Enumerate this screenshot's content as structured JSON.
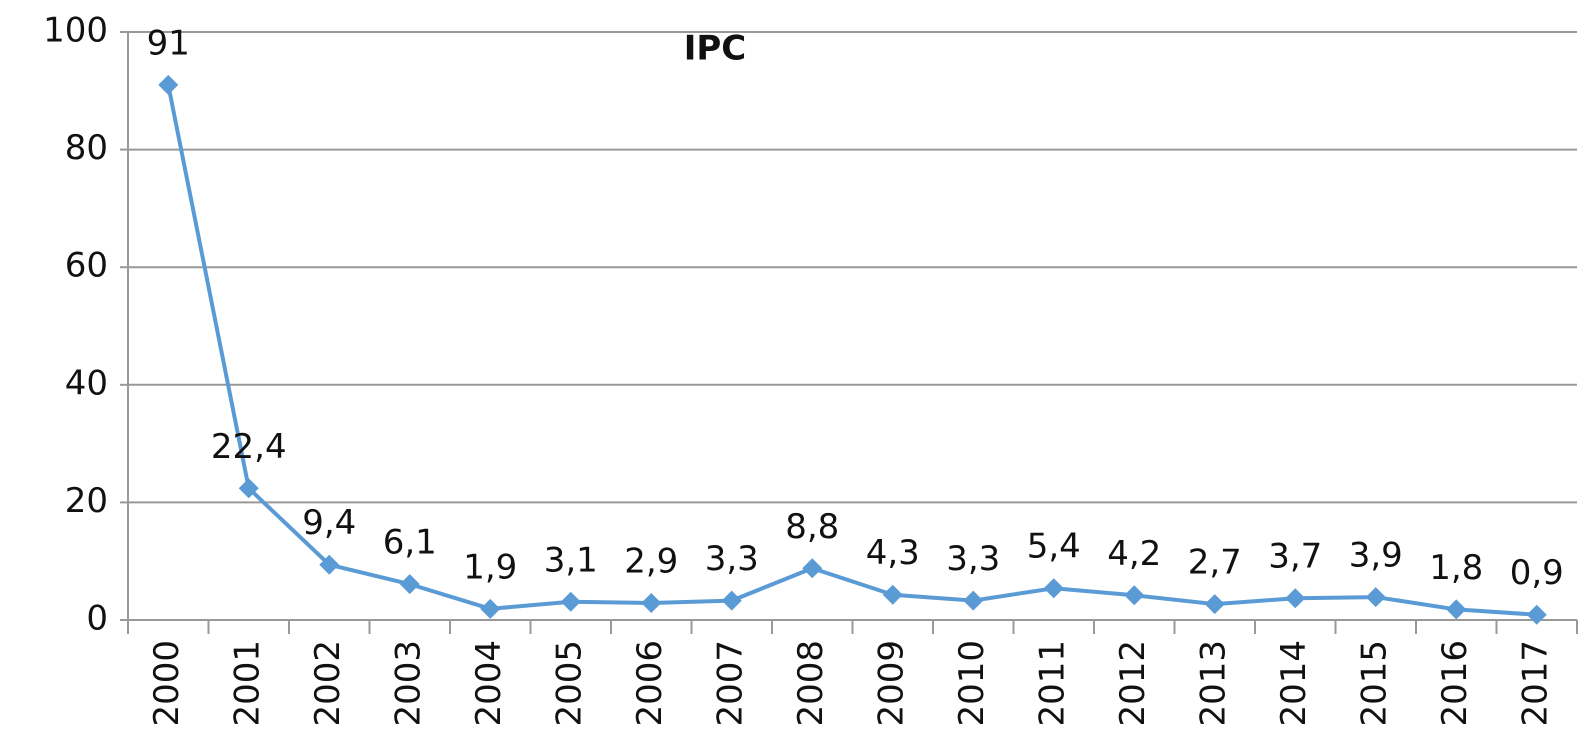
{
  "chart_data": {
    "type": "line",
    "title": "IPC",
    "categories": [
      "2000",
      "2001",
      "2002",
      "2003",
      "2004",
      "2005",
      "2006",
      "2007",
      "2008",
      "2009",
      "2010",
      "2011",
      "2012",
      "2013",
      "2014",
      "2015",
      "2016",
      "2017"
    ],
    "values": [
      91,
      22.4,
      9.4,
      6.1,
      1.9,
      3.1,
      2.9,
      3.3,
      8.8,
      4.3,
      3.3,
      5.4,
      4.2,
      2.7,
      3.7,
      3.9,
      1.8,
      0.9
    ],
    "value_labels": [
      "91",
      "22,4",
      "9,4",
      "6,1",
      "1,9",
      "3,1",
      "2,9",
      "3,3",
      "8,8",
      "4,3",
      "3,3",
      "5,4",
      "4,2",
      "2,7",
      "3,7",
      "3,9",
      "1,8",
      "0,9"
    ],
    "color": "#5b9bd5",
    "ylim": [
      0,
      100
    ],
    "yticks": [
      0,
      20,
      40,
      60,
      80,
      100
    ],
    "grid": true
  }
}
